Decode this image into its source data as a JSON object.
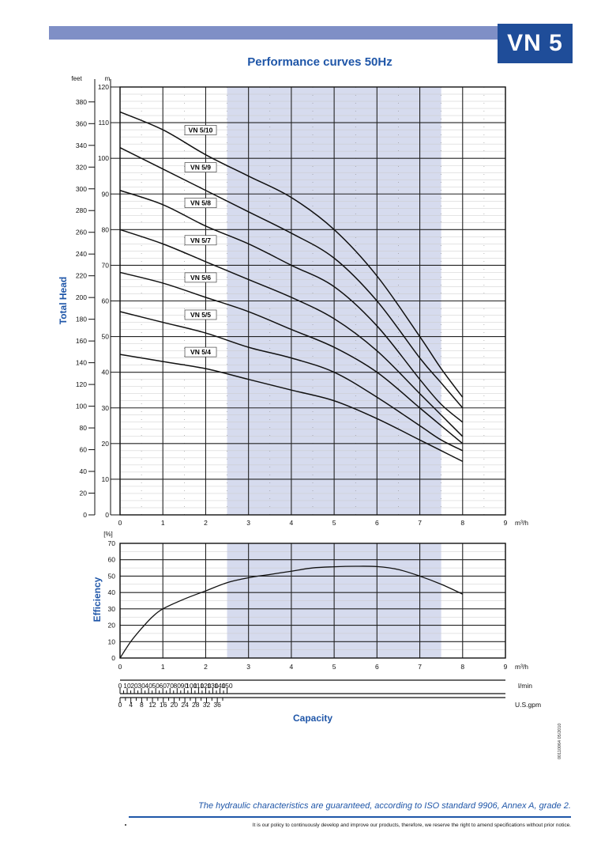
{
  "header": {
    "model": "VN 5",
    "title": "Performance curves 50Hz",
    "accent_color": "#1f4d99",
    "title_color": "#1f56a8",
    "bar_color": "#7f8fc6",
    "band_color": "#d6dbee"
  },
  "chart_data": [
    {
      "type": "line",
      "title": "Performance curves 50Hz",
      "ylabel": "Total Head",
      "y_unit_m": "m",
      "y_unit_feet": "feet",
      "x_unit": "m³/h",
      "xlim": [
        0,
        9
      ],
      "ylim": [
        0,
        120
      ],
      "x_ticks": [
        "0",
        "1",
        "2",
        "3",
        "4",
        "5",
        "6",
        "7",
        "8",
        "9"
      ],
      "y_ticks_m": [
        "0",
        "10",
        "20",
        "30",
        "40",
        "50",
        "60",
        "70",
        "80",
        "90",
        "100",
        "110",
        "120"
      ],
      "y_ticks_feet": [
        "0",
        "20",
        "40",
        "60",
        "80",
        "100",
        "120",
        "140",
        "160",
        "180",
        "200",
        "220",
        "240",
        "260",
        "280",
        "300",
        "320",
        "340",
        "360",
        "380"
      ],
      "recommended_range": [
        2.5,
        7.5
      ],
      "grid": true,
      "series": [
        {
          "name": "VN 5/10",
          "x": [
            0,
            1,
            2,
            3,
            4,
            5,
            6,
            7,
            7.5,
            8
          ],
          "y": [
            113,
            108,
            101,
            95,
            89,
            80,
            67,
            50,
            41,
            33
          ]
        },
        {
          "name": "VN 5/9",
          "x": [
            0,
            1,
            2,
            3,
            4,
            5,
            6,
            7,
            7.5,
            8
          ],
          "y": [
            103,
            97,
            91,
            85,
            79,
            72,
            60,
            44,
            37,
            30
          ]
        },
        {
          "name": "VN 5/8",
          "x": [
            0,
            1,
            2,
            3,
            4,
            5,
            6,
            7,
            7.5,
            8
          ],
          "y": [
            91,
            87,
            81,
            76,
            70,
            64,
            53,
            38,
            31,
            26
          ]
        },
        {
          "name": "VN 5/7",
          "x": [
            0,
            1,
            2,
            3,
            4,
            5,
            6,
            7,
            7.5,
            8
          ],
          "y": [
            80,
            76,
            71,
            66,
            61,
            55,
            46,
            34,
            28,
            22
          ]
        },
        {
          "name": "VN 5/6",
          "x": [
            0,
            1,
            2,
            3,
            4,
            5,
            6,
            7,
            7.5,
            8
          ],
          "y": [
            68,
            65,
            61,
            57,
            52,
            47,
            40,
            30,
            25,
            20
          ]
        },
        {
          "name": "VN 5/5",
          "x": [
            0,
            1,
            2,
            3,
            4,
            5,
            6,
            7,
            7.5,
            8
          ],
          "y": [
            57,
            54,
            51,
            47,
            44,
            40,
            33,
            25,
            21,
            18
          ]
        },
        {
          "name": "VN 5/4",
          "x": [
            0,
            1,
            2,
            3,
            4,
            5,
            6,
            7,
            7.5,
            8
          ],
          "y": [
            45,
            43,
            41,
            38,
            35,
            32,
            27,
            21,
            18,
            15
          ]
        }
      ]
    },
    {
      "type": "line",
      "ylabel": "Efficiency",
      "y_unit": "[%]",
      "x_unit": "m³/h",
      "xlim": [
        0,
        9
      ],
      "ylim": [
        0,
        70
      ],
      "x_ticks": [
        "0",
        "1",
        "2",
        "3",
        "4",
        "5",
        "6",
        "7",
        "8",
        "9"
      ],
      "y_ticks": [
        "0",
        "10",
        "20",
        "30",
        "40",
        "50",
        "60",
        "70"
      ],
      "recommended_range": [
        2.5,
        7.5
      ],
      "grid": true,
      "series": [
        {
          "x": [
            0,
            0.25,
            0.5,
            0.75,
            1,
            1.5,
            2,
            2.5,
            3,
            3.5,
            4,
            4.5,
            5,
            5.5,
            6,
            6.5,
            7,
            7.5,
            8
          ],
          "y": [
            0,
            10,
            18,
            25,
            30,
            36,
            41,
            46,
            49,
            51,
            53,
            55,
            55.7,
            56,
            55.8,
            54,
            50,
            45,
            39
          ]
        }
      ]
    },
    {
      "type": "table",
      "xlabel": "Capacity",
      "scales": [
        {
          "unit": "l/min",
          "ticks": [
            "0",
            "10",
            "20",
            "30",
            "40",
            "50",
            "60",
            "70",
            "80",
            "90",
            "100",
            "110",
            "120",
            "130",
            "140",
            "150"
          ]
        },
        {
          "unit": "U.S.gpm",
          "ticks": [
            "0",
            "4",
            "8",
            "12",
            "16",
            "20",
            "24",
            "28",
            "32",
            "36"
          ]
        }
      ]
    }
  ],
  "footer": {
    "side_code": "00110064  05/2010",
    "guarantee": "The hydraulic characteristics are guaranteed, according to ISO standard 9906, Annex A, grade 2.",
    "policy": "It is our policy to continuously develop and improve our products, therefore, we reserve the right to amend specifications without prior notice."
  }
}
